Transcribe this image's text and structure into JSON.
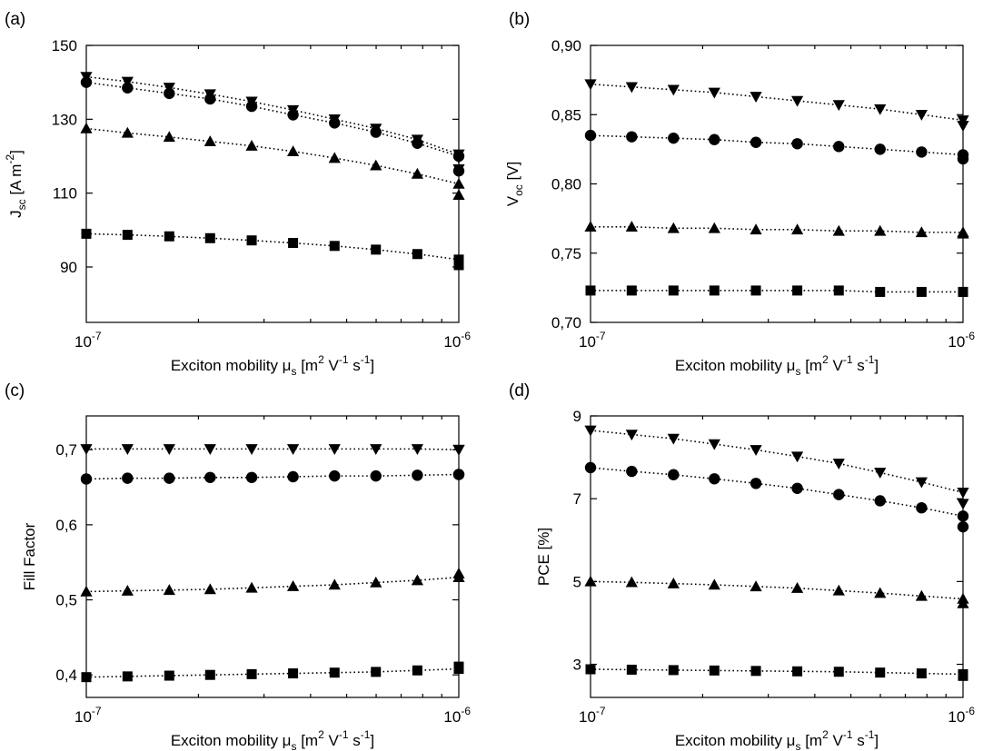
{
  "chart_data": [
    {
      "panel": "(a)",
      "type": "line",
      "xscale": "log",
      "xlim": [
        1e-07,
        1e-06
      ],
      "x_ticks": [
        {
          "value": 1e-07,
          "base": "10",
          "exp": "-7"
        },
        {
          "value": 1e-06,
          "base": "10",
          "exp": "-6"
        }
      ],
      "ylim": [
        75,
        150
      ],
      "y_ticks": [
        {
          "value": 90,
          "label": "90"
        },
        {
          "value": 110,
          "label": "110"
        },
        {
          "value": 130,
          "label": "130"
        },
        {
          "value": 150,
          "label": "150"
        }
      ],
      "ylabel": {
        "main": "J",
        "sub": "sc",
        "unit": " [A m",
        "sup": "-2",
        "close": "]"
      },
      "xlabel": {
        "pre": "Exciton mobility ",
        "mu": "μ",
        "sub": "s",
        "a": " [m",
        "s1": "2",
        "b": " V",
        "s2": "-1",
        "c": " s",
        "s3": "-1",
        "d": "]"
      },
      "x": [
        1e-07,
        1.29e-07,
        1.67e-07,
        2.15e-07,
        2.78e-07,
        3.59e-07,
        4.64e-07,
        5.99e-07,
        7.74e-07,
        1e-06
      ],
      "series": [
        {
          "marker": "triangle-down",
          "values": [
            141.5,
            140.2,
            138.6,
            136.8,
            134.8,
            132.5,
            130.0,
            127.5,
            124.5,
            120.5
          ]
        },
        {
          "marker": "circle",
          "values": [
            140.0,
            138.5,
            137.0,
            135.5,
            133.5,
            131.2,
            129.0,
            126.5,
            123.5,
            120.0
          ]
        },
        {
          "marker": "triangle-up",
          "values": [
            127.5,
            126.3,
            125.2,
            124.0,
            122.8,
            121.3,
            119.5,
            117.5,
            115.2,
            112.5
          ]
        },
        {
          "marker": "square",
          "values": [
            99.0,
            98.7,
            98.3,
            97.8,
            97.2,
            96.5,
            95.7,
            94.7,
            93.5,
            92.0
          ]
        }
      ],
      "series_end_values": [
        116.5,
        116.0,
        109.5,
        90.5
      ]
    },
    {
      "panel": "(b)",
      "type": "line",
      "xscale": "log",
      "xlim": [
        1e-07,
        1e-06
      ],
      "x_ticks": [
        {
          "value": 1e-07,
          "base": "10",
          "exp": "-7"
        },
        {
          "value": 1e-06,
          "base": "10",
          "exp": "-6"
        }
      ],
      "ylim": [
        0.7,
        0.9
      ],
      "y_ticks": [
        {
          "value": 0.7,
          "label": "0,70"
        },
        {
          "value": 0.75,
          "label": "0,75"
        },
        {
          "value": 0.8,
          "label": "0,80"
        },
        {
          "value": 0.85,
          "label": "0,85"
        },
        {
          "value": 0.9,
          "label": "0,90"
        }
      ],
      "ylabel": {
        "main": "V",
        "sub": "oc",
        "unit": " [V]",
        "sup": "",
        "close": ""
      },
      "xlabel": {
        "pre": "Exciton mobility ",
        "mu": "μ",
        "sub": "s",
        "a": " [m",
        "s1": "2",
        "b": " V",
        "s2": "-1",
        "c": " s",
        "s3": "-1",
        "d": "]"
      },
      "x": [
        1e-07,
        1.29e-07,
        1.67e-07,
        2.15e-07,
        2.78e-07,
        3.59e-07,
        4.64e-07,
        5.99e-07,
        7.74e-07,
        1e-06
      ],
      "series": [
        {
          "marker": "triangle-down",
          "values": [
            0.872,
            0.87,
            0.868,
            0.866,
            0.863,
            0.86,
            0.857,
            0.854,
            0.85,
            0.846
          ]
        },
        {
          "marker": "circle",
          "values": [
            0.835,
            0.834,
            0.833,
            0.832,
            0.83,
            0.829,
            0.827,
            0.825,
            0.823,
            0.821
          ]
        },
        {
          "marker": "triangle-up",
          "values": [
            0.769,
            0.769,
            0.768,
            0.768,
            0.767,
            0.767,
            0.766,
            0.766,
            0.765,
            0.765
          ]
        },
        {
          "marker": "square",
          "values": [
            0.723,
            0.723,
            0.723,
            0.723,
            0.723,
            0.723,
            0.723,
            0.722,
            0.722,
            0.722
          ]
        }
      ],
      "series_end_values": [
        0.842,
        0.818,
        0.764,
        0.722
      ]
    },
    {
      "panel": "(c)",
      "type": "line",
      "xscale": "log",
      "xlim": [
        1e-07,
        1e-06
      ],
      "x_ticks": [
        {
          "value": 1e-07,
          "base": "10",
          "exp": "-7"
        },
        {
          "value": 1e-06,
          "base": "10",
          "exp": "-6"
        }
      ],
      "ylim": [
        0.37,
        0.745
      ],
      "y_ticks": [
        {
          "value": 0.4,
          "label": "0,4"
        },
        {
          "value": 0.5,
          "label": "0,5"
        },
        {
          "value": 0.6,
          "label": "0,6"
        },
        {
          "value": 0.7,
          "label": "0,7"
        }
      ],
      "ylabel": {
        "main": "Fill Factor",
        "sub": "",
        "unit": "",
        "sup": "",
        "close": ""
      },
      "xlabel": {
        "pre": "Exciton mobility ",
        "mu": "μ",
        "sub": "s",
        "a": " [m",
        "s1": "2",
        "b": " V",
        "s2": "-1",
        "c": " s",
        "s3": "-1",
        "d": "]"
      },
      "x": [
        1e-07,
        1.29e-07,
        1.67e-07,
        2.15e-07,
        2.78e-07,
        3.59e-07,
        4.64e-07,
        5.99e-07,
        7.74e-07,
        1e-06
      ],
      "series": [
        {
          "marker": "triangle-down",
          "values": [
            0.701,
            0.701,
            0.701,
            0.701,
            0.701,
            0.701,
            0.701,
            0.701,
            0.701,
            0.7
          ]
        },
        {
          "marker": "circle",
          "values": [
            0.661,
            0.662,
            0.662,
            0.663,
            0.663,
            0.664,
            0.665,
            0.665,
            0.666,
            0.667
          ]
        },
        {
          "marker": "triangle-up",
          "values": [
            0.511,
            0.512,
            0.513,
            0.514,
            0.516,
            0.518,
            0.52,
            0.523,
            0.526,
            0.53
          ]
        },
        {
          "marker": "square",
          "values": [
            0.397,
            0.398,
            0.399,
            0.4,
            0.401,
            0.402,
            0.403,
            0.404,
            0.406,
            0.408
          ]
        }
      ],
      "series_end_values": [
        0.7,
        0.667,
        0.535,
        0.411
      ]
    },
    {
      "panel": "(d)",
      "type": "line",
      "xscale": "log",
      "xlim": [
        1e-07,
        1e-06
      ],
      "x_ticks": [
        {
          "value": 1e-07,
          "base": "10",
          "exp": "-7"
        },
        {
          "value": 1e-06,
          "base": "10",
          "exp": "-6"
        }
      ],
      "ylim": [
        2.2,
        9.0
      ],
      "y_ticks": [
        {
          "value": 3,
          "label": "3"
        },
        {
          "value": 5,
          "label": "5"
        },
        {
          "value": 7,
          "label": "7"
        },
        {
          "value": 9,
          "label": "9"
        }
      ],
      "ylabel": {
        "main": "PCE [%]",
        "sub": "",
        "unit": "",
        "sup": "",
        "close": ""
      },
      "xlabel": {
        "pre": "Exciton mobility ",
        "mu": "μ",
        "sub": "s",
        "a": " [m",
        "s1": "2",
        "b": " V",
        "s2": "-1",
        "c": " s",
        "s3": "-1",
        "d": "]"
      },
      "x": [
        1e-07,
        1.29e-07,
        1.67e-07,
        2.15e-07,
        2.78e-07,
        3.59e-07,
        4.64e-07,
        5.99e-07,
        7.74e-07,
        1e-06
      ],
      "series": [
        {
          "marker": "triangle-down",
          "values": [
            8.65,
            8.55,
            8.45,
            8.32,
            8.18,
            8.02,
            7.85,
            7.63,
            7.4,
            7.15
          ]
        },
        {
          "marker": "circle",
          "values": [
            7.75,
            7.66,
            7.58,
            7.48,
            7.37,
            7.25,
            7.1,
            6.95,
            6.78,
            6.58
          ]
        },
        {
          "marker": "triangle-up",
          "values": [
            5.0,
            4.98,
            4.95,
            4.92,
            4.88,
            4.84,
            4.78,
            4.72,
            4.65,
            4.58
          ]
        },
        {
          "marker": "square",
          "values": [
            2.88,
            2.87,
            2.86,
            2.85,
            2.84,
            2.83,
            2.82,
            2.8,
            2.78,
            2.76
          ]
        }
      ],
      "series_end_values": [
        6.88,
        6.32,
        4.47,
        2.72
      ]
    }
  ]
}
